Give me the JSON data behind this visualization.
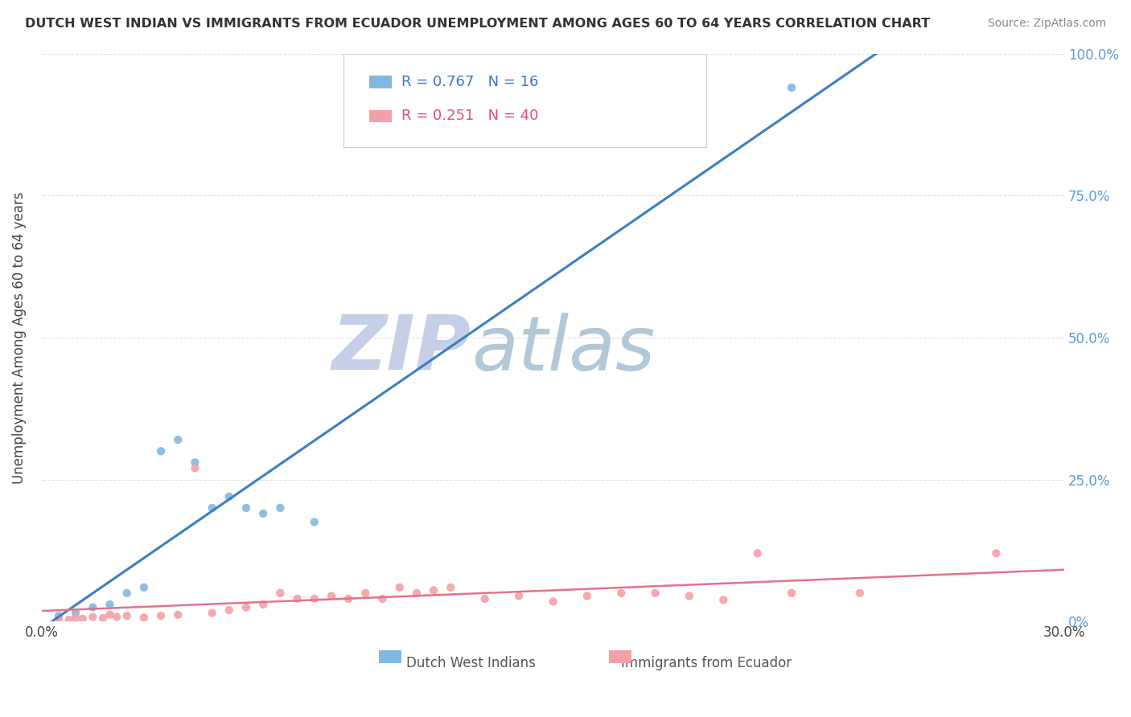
{
  "title": "DUTCH WEST INDIAN VS IMMIGRANTS FROM ECUADOR UNEMPLOYMENT AMONG AGES 60 TO 64 YEARS CORRELATION CHART",
  "source": "Source: ZipAtlas.com",
  "ylabel": "Unemployment Among Ages 60 to 64 years",
  "xmin": 0.0,
  "xmax": 0.3,
  "ymin": 0.0,
  "ymax": 1.0,
  "xticks": [
    0.0,
    0.05,
    0.1,
    0.15,
    0.2,
    0.25,
    0.3
  ],
  "yticks": [
    0.0,
    0.25,
    0.5,
    0.75,
    1.0
  ],
  "ytick_labels_right": [
    "0%",
    "25.0%",
    "50.0%",
    "75.0%",
    "100.0%"
  ],
  "blue_color": "#82b8e0",
  "pink_color": "#f4a0a8",
  "line_blue": "#3a7fc1",
  "line_pink": "#e8708a",
  "legend_label_blue": "Dutch West Indians",
  "legend_label_pink": "Immigrants from Ecuador",
  "R_blue": 0.767,
  "N_blue": 16,
  "R_pink": 0.251,
  "N_pink": 40,
  "blue_scatter_x": [
    0.005,
    0.01,
    0.015,
    0.02,
    0.025,
    0.03,
    0.035,
    0.04,
    0.045,
    0.05,
    0.055,
    0.06,
    0.065,
    0.07,
    0.08,
    0.22
  ],
  "blue_scatter_y": [
    0.01,
    0.015,
    0.025,
    0.03,
    0.05,
    0.06,
    0.3,
    0.32,
    0.28,
    0.2,
    0.22,
    0.2,
    0.19,
    0.2,
    0.175,
    0.94
  ],
  "pink_scatter_x": [
    0.005,
    0.008,
    0.01,
    0.012,
    0.015,
    0.018,
    0.02,
    0.022,
    0.025,
    0.03,
    0.035,
    0.04,
    0.045,
    0.05,
    0.055,
    0.06,
    0.065,
    0.07,
    0.075,
    0.08,
    0.085,
    0.09,
    0.095,
    0.1,
    0.105,
    0.11,
    0.115,
    0.12,
    0.13,
    0.14,
    0.15,
    0.16,
    0.17,
    0.18,
    0.19,
    0.2,
    0.21,
    0.22,
    0.24,
    0.28
  ],
  "pink_scatter_y": [
    0.005,
    0.003,
    0.007,
    0.005,
    0.008,
    0.006,
    0.012,
    0.008,
    0.01,
    0.007,
    0.01,
    0.012,
    0.27,
    0.015,
    0.02,
    0.025,
    0.03,
    0.05,
    0.04,
    0.04,
    0.045,
    0.04,
    0.05,
    0.04,
    0.06,
    0.05,
    0.055,
    0.06,
    0.04,
    0.045,
    0.035,
    0.045,
    0.05,
    0.05,
    0.045,
    0.038,
    0.12,
    0.05,
    0.05,
    0.12
  ],
  "watermark_zip": "ZIP",
  "watermark_atlas": "atlas",
  "watermark_color_zip": "#c5cfe8",
  "watermark_color_atlas": "#b0c8d8",
  "background_color": "#ffffff",
  "grid_color": "#e0e0e0"
}
